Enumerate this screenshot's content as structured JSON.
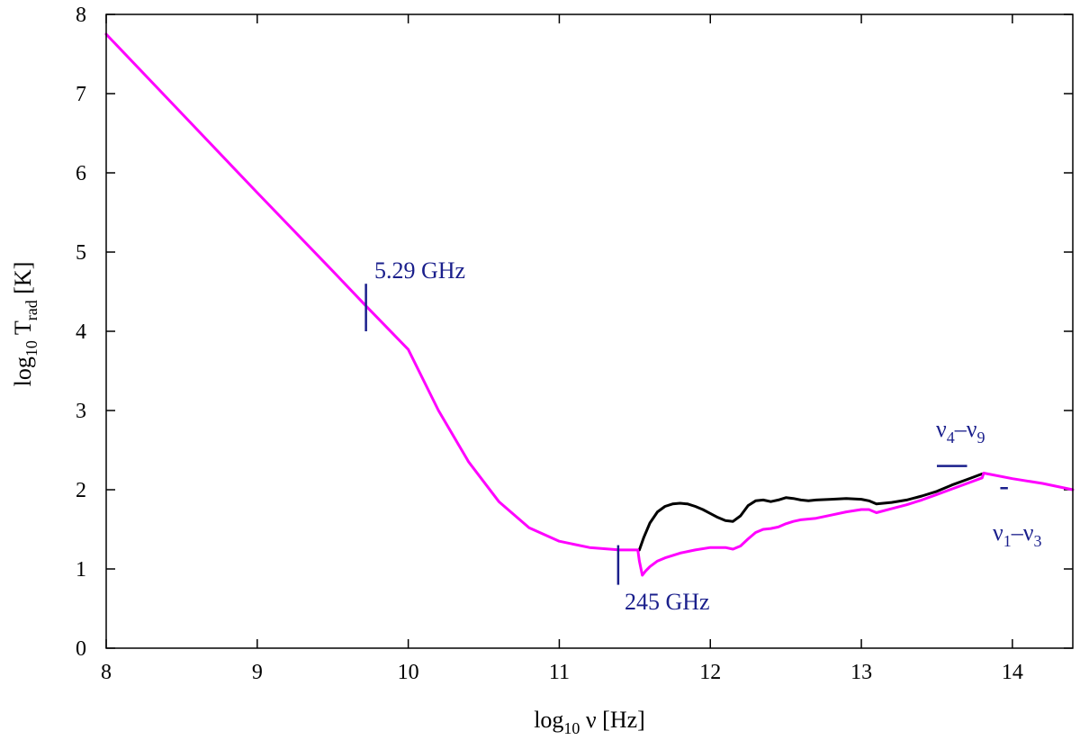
{
  "chart_data": {
    "type": "line",
    "title": "",
    "xlabel": {
      "base": "log",
      "sub": "10",
      "rest": " ν [Hz]"
    },
    "ylabel": {
      "base": "log",
      "sub": "10",
      "mid": " T",
      "sub2": "rad",
      "rest": " [K]"
    },
    "xlim": [
      8,
      14.4
    ],
    "ylim": [
      0,
      8
    ],
    "x_ticks": [
      8,
      9,
      10,
      11,
      12,
      13,
      14
    ],
    "y_ticks": [
      0,
      1,
      2,
      3,
      4,
      5,
      6,
      7,
      8
    ],
    "x_tick_labels": [
      "8",
      "9",
      "10",
      "11",
      "12",
      "13",
      "14"
    ],
    "y_tick_labels": [
      "0",
      "1",
      "2",
      "3",
      "4",
      "5",
      "6",
      "7",
      "8"
    ],
    "grid": false,
    "series": [
      {
        "color": "#000000",
        "x": [
          11.53,
          11.56,
          11.6,
          11.65,
          11.7,
          11.75,
          11.8,
          11.85,
          11.9,
          11.95,
          12.0,
          12.05,
          12.1,
          12.15,
          12.2,
          12.25,
          12.3,
          12.35,
          12.4,
          12.45,
          12.5,
          12.55,
          12.6,
          12.65,
          12.7,
          12.8,
          12.9,
          13.0,
          13.05,
          13.1,
          13.2,
          13.3,
          13.4,
          13.5,
          13.6,
          13.7,
          13.8
        ],
        "y": [
          1.24,
          1.4,
          1.58,
          1.72,
          1.79,
          1.82,
          1.83,
          1.82,
          1.79,
          1.75,
          1.7,
          1.65,
          1.61,
          1.6,
          1.67,
          1.8,
          1.86,
          1.87,
          1.85,
          1.87,
          1.9,
          1.89,
          1.87,
          1.86,
          1.87,
          1.88,
          1.89,
          1.88,
          1.86,
          1.82,
          1.84,
          1.87,
          1.92,
          1.98,
          2.06,
          2.13,
          2.2
        ]
      },
      {
        "color": "#ff00ff",
        "x": [
          8.0,
          8.5,
          9.0,
          9.5,
          9.72,
          10.0,
          10.2,
          10.4,
          10.6,
          10.8,
          11.0,
          11.2,
          11.4,
          11.52,
          11.53,
          11.55,
          11.57,
          11.6,
          11.65,
          11.7,
          11.8,
          11.9,
          12.0,
          12.1,
          12.15,
          12.2,
          12.25,
          12.3,
          12.35,
          12.4,
          12.45,
          12.5,
          12.55,
          12.6,
          12.7,
          12.8,
          12.9,
          13.0,
          13.05,
          13.1,
          13.2,
          13.3,
          13.4,
          13.5,
          13.6,
          13.7,
          13.8,
          13.81,
          14.0,
          14.2,
          14.4
        ],
        "y": [
          7.75,
          6.75,
          5.75,
          4.76,
          4.32,
          3.77,
          3.0,
          2.35,
          1.85,
          1.52,
          1.35,
          1.27,
          1.24,
          1.24,
          1.1,
          0.92,
          0.97,
          1.03,
          1.1,
          1.14,
          1.2,
          1.24,
          1.27,
          1.27,
          1.25,
          1.29,
          1.38,
          1.46,
          1.5,
          1.51,
          1.53,
          1.57,
          1.6,
          1.62,
          1.64,
          1.68,
          1.72,
          1.75,
          1.75,
          1.71,
          1.76,
          1.81,
          1.87,
          1.94,
          2.01,
          2.08,
          2.15,
          2.21,
          2.14,
          2.08,
          2.0
        ]
      }
    ],
    "annotations": {
      "label_5_29": "5.29 GHz",
      "label_245": "245 GHz",
      "label_nu49": {
        "a": "ν",
        "s1": "4",
        "b": "–ν",
        "s2": "9"
      },
      "label_nu13": {
        "a": "ν",
        "s1": "1",
        "b": "–ν",
        "s2": "3"
      },
      "color": "#1a1f8c"
    }
  }
}
